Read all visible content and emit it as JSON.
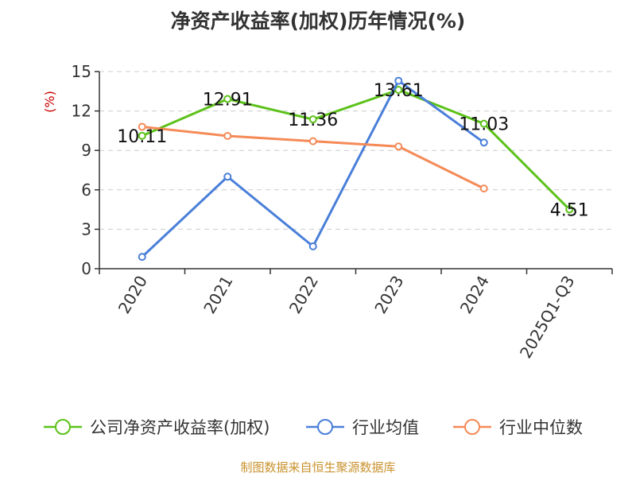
{
  "chart_data": {
    "type": "line",
    "title": "净资产收益率(加权)历年情况(%)",
    "unit_label": "(%)",
    "categories": [
      "2020",
      "2021",
      "2022",
      "2023",
      "2024",
      "2025Q1-Q3"
    ],
    "ylim": [
      0,
      15
    ],
    "yticks": [
      0,
      3,
      6,
      9,
      12,
      15
    ],
    "grid": true,
    "legend_position": "bottom",
    "series": [
      {
        "name": "公司净资产收益率(加权)",
        "color": "#5cc21a",
        "values": [
          10.11,
          12.91,
          11.36,
          13.61,
          11.03,
          4.51
        ],
        "labels": [
          "10.11",
          "12.91",
          "11.36",
          "13.61",
          "11.03",
          "4.51"
        ]
      },
      {
        "name": "行业均值",
        "color": "#4a7fd9",
        "values": [
          0.9,
          7.0,
          1.7,
          14.3,
          9.6,
          null
        ]
      },
      {
        "name": "行业中位数",
        "color": "#f58a57",
        "values": [
          10.8,
          10.1,
          9.7,
          9.3,
          6.1,
          null
        ]
      }
    ],
    "source": "制图数据来自恒生聚源数据库"
  }
}
